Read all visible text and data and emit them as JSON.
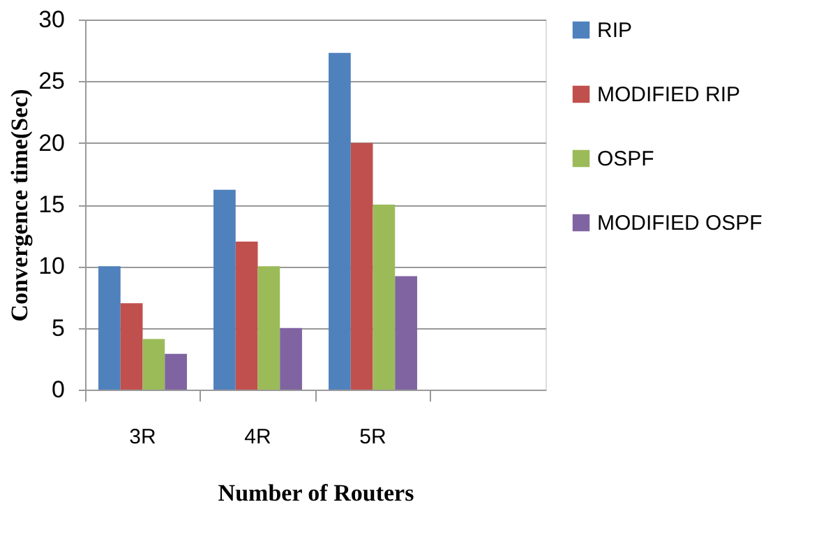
{
  "chart_data": {
    "type": "bar",
    "xlabel": "Number of Routers",
    "ylabel": "Convergence time(Sec)",
    "categories": [
      "3R",
      "4R",
      "5R",
      null
    ],
    "series": [
      {
        "name": "RIP",
        "color": "#4f81bd",
        "values": [
          10,
          16.2,
          27.3,
          null
        ]
      },
      {
        "name": "MODIFIED RIP",
        "color": "#c0504d",
        "values": [
          7,
          12,
          20,
          null
        ]
      },
      {
        "name": "OSPF",
        "color": "#9bbb59",
        "values": [
          4.1,
          10,
          15,
          null
        ]
      },
      {
        "name": "MODIFIED OSPF",
        "color": "#8064a2",
        "values": [
          2.9,
          5,
          9.2,
          null
        ]
      }
    ],
    "ylim": [
      0,
      30
    ],
    "yticks": [
      0,
      5,
      10,
      15,
      20,
      25,
      30
    ],
    "grid": "y",
    "legend": "right"
  }
}
